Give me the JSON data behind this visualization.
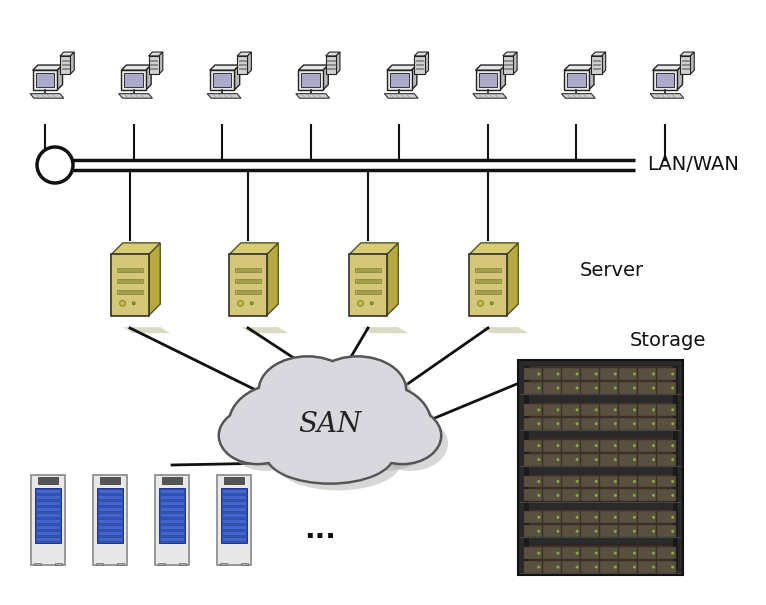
{
  "bg_color": "#ffffff",
  "lan_wan_label": "LAN/WAN",
  "server_label": "Server",
  "storage_label": "Storage",
  "san_label": "SAN",
  "ellipsis_label": "...",
  "num_computers": 8,
  "num_servers": 4,
  "figw": 7.66,
  "figh": 6.05,
  "dpi": 100
}
